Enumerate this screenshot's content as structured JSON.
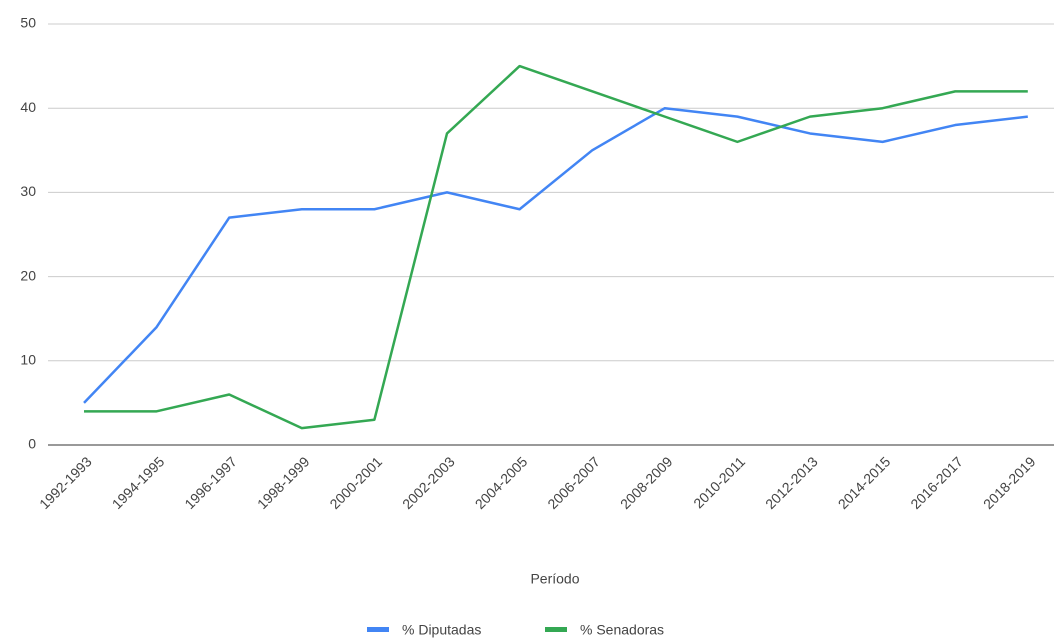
{
  "chart_data": {
    "type": "line",
    "x_label": "Período",
    "categories": [
      "1992-1993",
      "1994-1995",
      "1996-1997",
      "1998-1999",
      "2000-2001",
      "2002-2003",
      "2004-2005",
      "2006-2007",
      "2008-2009",
      "2010-2011",
      "2012-2013",
      "2014-2015",
      "2016-2017",
      "2018-2019"
    ],
    "series": [
      {
        "name": "% Diputadas",
        "color": "#4285f4",
        "values": [
          5,
          14,
          27,
          28,
          28,
          30,
          28,
          35,
          40,
          39,
          37,
          36,
          38,
          39
        ]
      },
      {
        "name": "% Senadoras",
        "color": "#34a853",
        "values": [
          4,
          4,
          6,
          2,
          3,
          37,
          45,
          42,
          39,
          36,
          39,
          40,
          42,
          42
        ]
      }
    ],
    "ylim": [
      0,
      50
    ],
    "yticks": [
      0,
      10,
      20,
      30,
      40,
      50
    ],
    "grid": true,
    "legend_position": "bottom"
  }
}
